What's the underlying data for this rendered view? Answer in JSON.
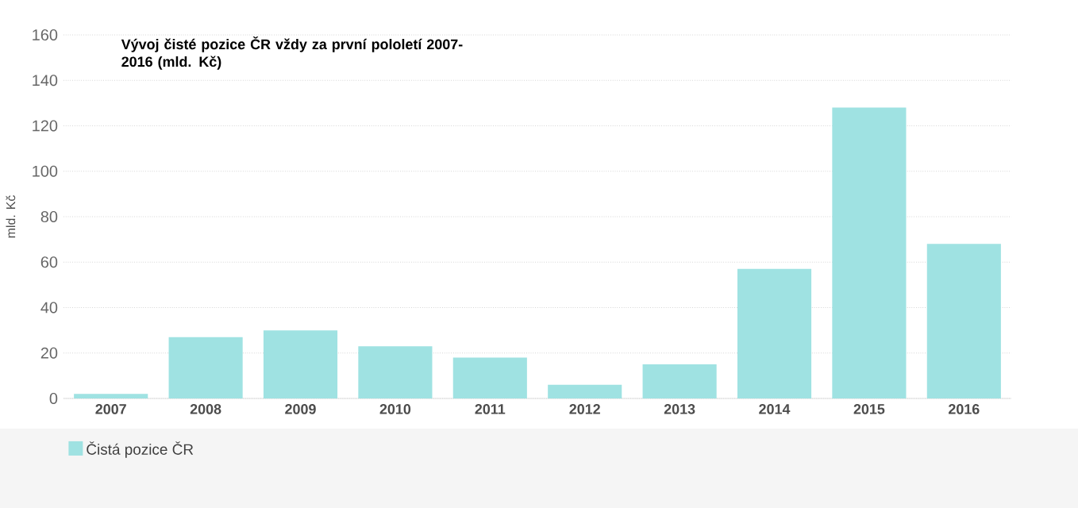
{
  "chart_data": {
    "type": "bar",
    "title": "Vývoj čisté pozice ČR vždy za první pololetí 2007-2016 (mld. Kč)",
    "ylabel": "mld. Kč",
    "categories": [
      "2007",
      "2008",
      "2009",
      "2010",
      "2011",
      "2012",
      "2013",
      "2014",
      "2015",
      "2016"
    ],
    "series": [
      {
        "name": "Čistá pozice ČR",
        "color": "#9fe2e2",
        "values": [
          2,
          27,
          30,
          23,
          18,
          6,
          15,
          57,
          128,
          68
        ]
      }
    ],
    "ylim": [
      0,
      160
    ],
    "yticks": [
      0,
      20,
      40,
      60,
      80,
      100,
      120,
      140,
      160
    ],
    "grid": "y",
    "legend": "bottom left"
  }
}
